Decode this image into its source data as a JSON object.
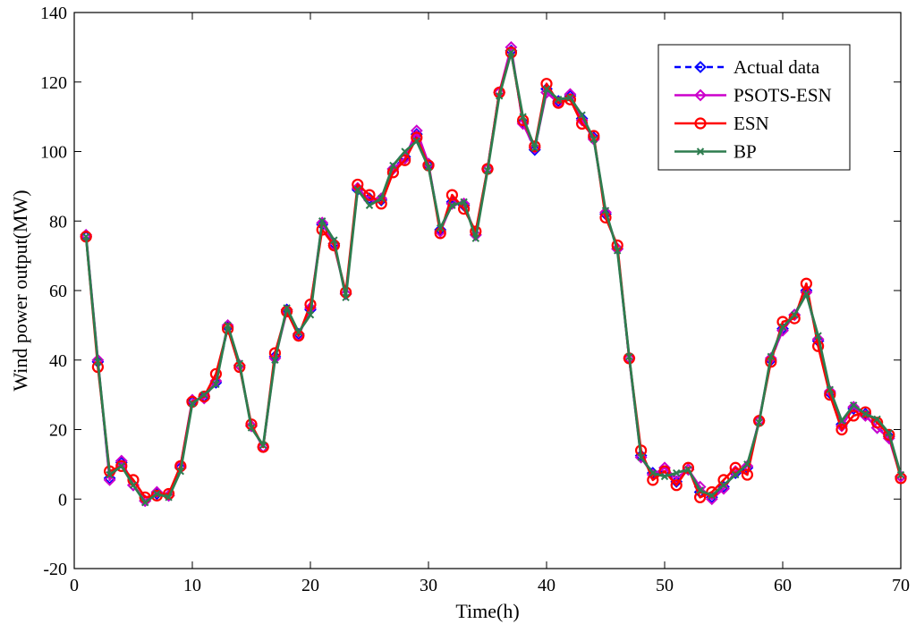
{
  "chart_data": {
    "type": "line",
    "title": "",
    "xlabel": "Time(h)",
    "ylabel": "Wind power output(MW)",
    "xlim": [
      0,
      70
    ],
    "ylim": [
      -20,
      140
    ],
    "xticks": [
      0,
      10,
      20,
      30,
      40,
      50,
      60,
      70
    ],
    "yticks": [
      -20,
      0,
      20,
      40,
      60,
      80,
      100,
      120,
      140
    ],
    "grid": false,
    "legend_position": "top-right",
    "x": [
      1,
      2,
      3,
      4,
      5,
      6,
      7,
      8,
      9,
      10,
      11,
      12,
      13,
      14,
      15,
      16,
      17,
      18,
      19,
      20,
      21,
      22,
      23,
      24,
      25,
      26,
      27,
      28,
      29,
      30,
      31,
      32,
      33,
      34,
      35,
      36,
      37,
      38,
      39,
      40,
      41,
      42,
      43,
      44,
      45,
      46,
      47,
      48,
      49,
      50,
      51,
      52,
      53,
      54,
      55,
      56,
      57,
      58,
      59,
      60,
      61,
      62,
      63,
      64,
      65,
      66,
      67,
      68,
      69,
      70
    ],
    "series": [
      {
        "name": "Actual data",
        "color": "#0000ff",
        "style": "dashed",
        "marker": "diamond",
        "values": [
          75.5,
          39.5,
          6,
          10.5,
          4,
          -0.5,
          1.5,
          1,
          9,
          28,
          29.5,
          33.5,
          49.5,
          38.5,
          21,
          15,
          41,
          54.5,
          47.5,
          54.5,
          79,
          73.5,
          59,
          89,
          86.5,
          86,
          95,
          98.5,
          105,
          96,
          77.5,
          85.5,
          84.5,
          76,
          95,
          117,
          129,
          108.5,
          100.5,
          118,
          114.5,
          116,
          109.5,
          104,
          82,
          72,
          40.5,
          12.5,
          7.5,
          8,
          5,
          8.5,
          2,
          0.5,
          3.5,
          7.5,
          9,
          22.5,
          40,
          49,
          53,
          60,
          45.5,
          30.5,
          21.5,
          26,
          24.5,
          20.5,
          18,
          6.5
        ]
      },
      {
        "name": "PSOTS-ESN",
        "color": "#cc00cc",
        "style": "solid",
        "marker": "diamond",
        "values": [
          76,
          40,
          5.5,
          11,
          4,
          -0.5,
          2,
          1,
          9.5,
          28.5,
          29,
          34,
          50,
          38.5,
          21,
          15,
          40.5,
          54,
          47,
          55,
          79.5,
          73,
          59,
          89.5,
          86,
          86.5,
          95,
          98,
          106,
          96.5,
          77,
          85,
          85,
          76,
          95,
          117,
          130,
          108,
          101,
          117,
          114,
          116.5,
          109,
          103.5,
          82.5,
          72,
          40.5,
          12,
          7,
          9,
          6,
          8.5,
          3.5,
          0,
          3,
          8,
          9.5,
          22.5,
          40.5,
          48.5,
          53,
          59.5,
          46,
          31,
          21,
          26.5,
          24,
          20.5,
          17.5,
          6.5
        ]
      },
      {
        "name": "ESN",
        "color": "#ff0000",
        "style": "solid",
        "marker": "circle",
        "values": [
          75.5,
          38,
          8,
          9.5,
          5.5,
          0.5,
          1,
          1.5,
          9.5,
          28,
          29.5,
          36,
          49,
          38,
          21.5,
          15,
          42,
          54,
          47,
          56,
          77.5,
          73,
          59.5,
          90.5,
          87.5,
          85,
          94,
          97.5,
          104,
          96,
          76.5,
          87.5,
          83.5,
          77,
          95,
          117,
          128.5,
          109,
          101.5,
          119.5,
          114,
          115,
          108,
          104.5,
          81,
          73,
          40.5,
          14,
          5.5,
          8,
          4,
          9,
          0.5,
          2,
          5.5,
          9,
          7,
          22.5,
          39.5,
          51,
          52,
          62,
          44,
          30,
          20,
          24,
          25,
          22,
          18.5,
          6
        ]
      },
      {
        "name": "BP",
        "color": "#2e7d4f",
        "style": "solid",
        "marker": "x",
        "values": [
          75.5,
          39.5,
          7,
          9.5,
          4,
          -1,
          1.5,
          0.5,
          8,
          27.5,
          30,
          33,
          50,
          39,
          20.5,
          15.5,
          40,
          55,
          48,
          53,
          80,
          74.5,
          58,
          89,
          84.5,
          86.5,
          96,
          100,
          103,
          95.5,
          78,
          84.5,
          85.5,
          75,
          94.5,
          116,
          128.5,
          110,
          101,
          118,
          115,
          115.5,
          110.5,
          103.5,
          83,
          71.5,
          41,
          12,
          7.5,
          6.5,
          7.5,
          8.5,
          2.5,
          1,
          4,
          7,
          10,
          22,
          41,
          49.5,
          53,
          59,
          47,
          31.5,
          22.5,
          27,
          24.5,
          23,
          19,
          7
        ]
      }
    ]
  }
}
